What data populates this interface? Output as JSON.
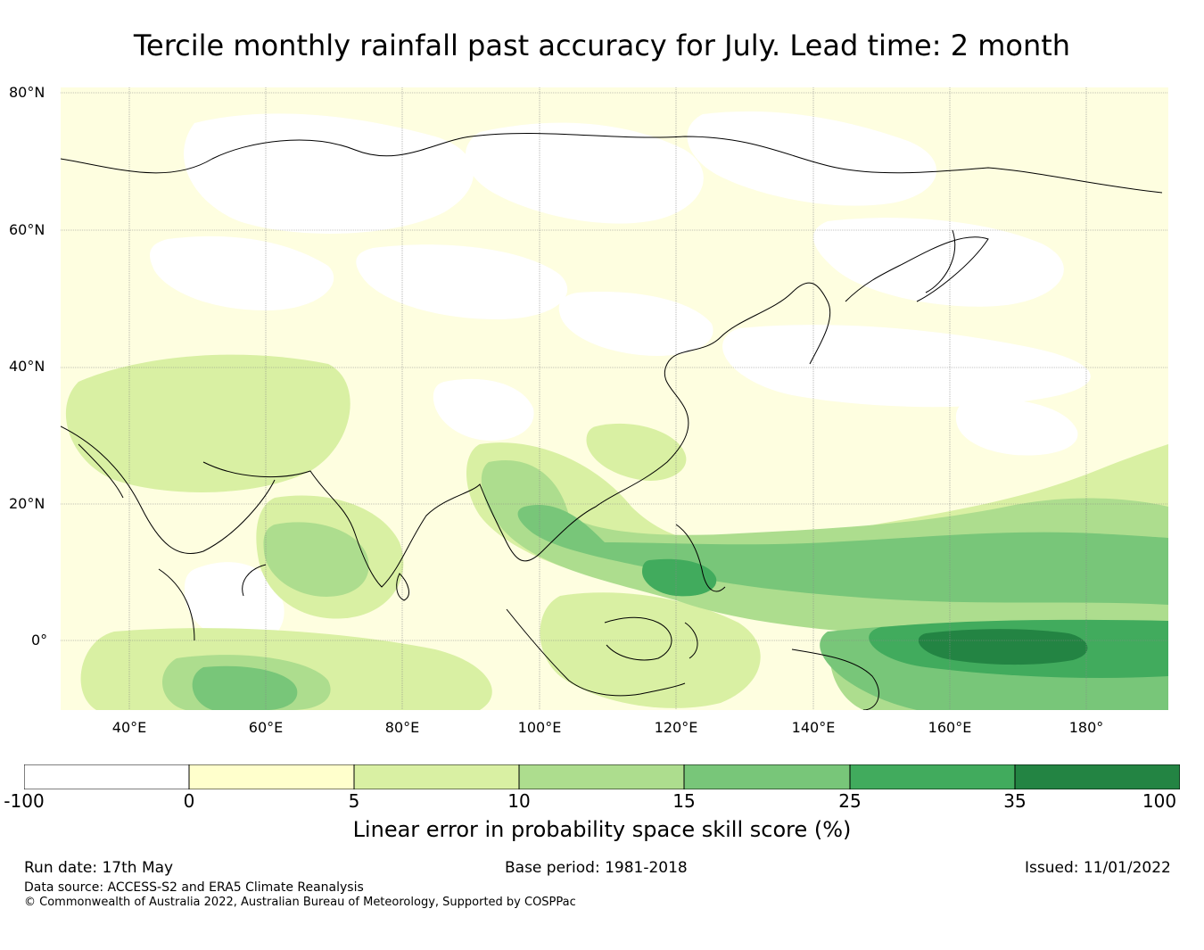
{
  "title": "Tercile monthly rainfall past accuracy for July. Lead time: 2 month",
  "map": {
    "latitude_labels": [
      "80°N",
      "60°N",
      "40°N",
      "20°N",
      "0°"
    ],
    "longitude_labels": [
      "40°E",
      "60°E",
      "80°E",
      "100°E",
      "120°E",
      "140°E",
      "160°E",
      "180°"
    ]
  },
  "colorbar": {
    "label": "Linear error in probability space skill score (%)",
    "ticks": [
      "-100",
      "0",
      "5",
      "10",
      "15",
      "25",
      "35",
      "100"
    ],
    "bins": [
      {
        "from": "-100",
        "to": "0",
        "color": "#ffffff"
      },
      {
        "from": "0",
        "to": "5",
        "color": "#ffffcc"
      },
      {
        "from": "5",
        "to": "10",
        "color": "#d9f0a3"
      },
      {
        "from": "10",
        "to": "15",
        "color": "#addd8e"
      },
      {
        "from": "15",
        "to": "25",
        "color": "#78c679"
      },
      {
        "from": "25",
        "to": "35",
        "color": "#41ab5d"
      },
      {
        "from": "35",
        "to": "100",
        "color": "#238443"
      }
    ]
  },
  "footer": {
    "run_date": "Run date: 17th May",
    "base_period": "Base period: 1981-2018",
    "issued": "Issued: 11/01/2022",
    "data_source": "Data source: ACCESS-S2 and ERA5 Climate Reanalysis",
    "copyright": "© Commonwealth of Australia 2022, Australian Bureau of Meteorology, Supported by COSPPac"
  }
}
